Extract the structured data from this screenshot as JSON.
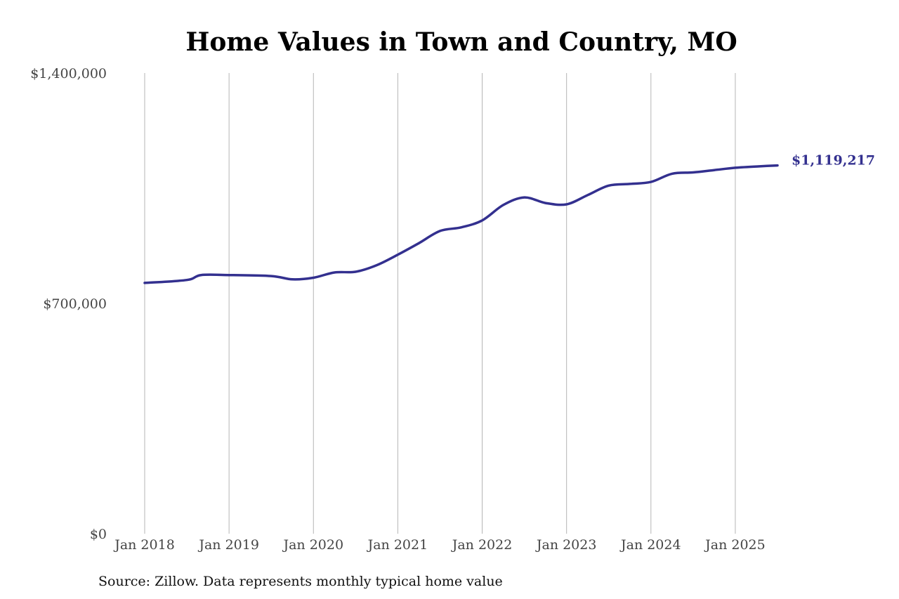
{
  "chart_data": {
    "type": "line",
    "title": "Home Values in Town and Country, MO",
    "xlabel": "",
    "ylabel": "",
    "source": "Source: Zillow. Data represents monthly typical home value",
    "ylim": [
      0,
      1400000
    ],
    "yticks": [
      0,
      700000,
      1400000
    ],
    "ytick_labels": [
      "$0",
      "$700,000",
      "$1,400,000"
    ],
    "xlim": [
      "2018-01",
      "2025-07"
    ],
    "xticks": [
      "2018-01",
      "2019-01",
      "2020-01",
      "2021-01",
      "2022-01",
      "2023-01",
      "2024-01",
      "2025-01"
    ],
    "xtick_labels": [
      "Jan 2018",
      "Jan 2019",
      "Jan 2020",
      "Jan 2021",
      "Jan 2022",
      "Jan 2023",
      "Jan 2024",
      "Jan 2025"
    ],
    "grid": "vertical",
    "line_color": "#33308f",
    "end_label": "$1,119,217",
    "series": [
      {
        "x": [
          "2018-01",
          "2018-07",
          "2018-09",
          "2019-01",
          "2019-07",
          "2019-10",
          "2020-01",
          "2020-04",
          "2020-07",
          "2020-10",
          "2021-01",
          "2021-04",
          "2021-07",
          "2021-10",
          "2022-01",
          "2022-04",
          "2022-07",
          "2022-10",
          "2023-01",
          "2023-04",
          "2023-07",
          "2023-10",
          "2024-01",
          "2024-04",
          "2024-07",
          "2024-10",
          "2025-01",
          "2025-04",
          "2025-07"
        ],
        "values": [
          762000,
          771000,
          786000,
          786000,
          783000,
          773000,
          778000,
          794000,
          796000,
          816000,
          848000,
          883000,
          920000,
          931000,
          952000,
          999000,
          1022000,
          1005000,
          1001000,
          1029000,
          1058000,
          1063000,
          1069000,
          1094000,
          1098000,
          1105000,
          1112000,
          1116000,
          1119217
        ]
      }
    ]
  }
}
